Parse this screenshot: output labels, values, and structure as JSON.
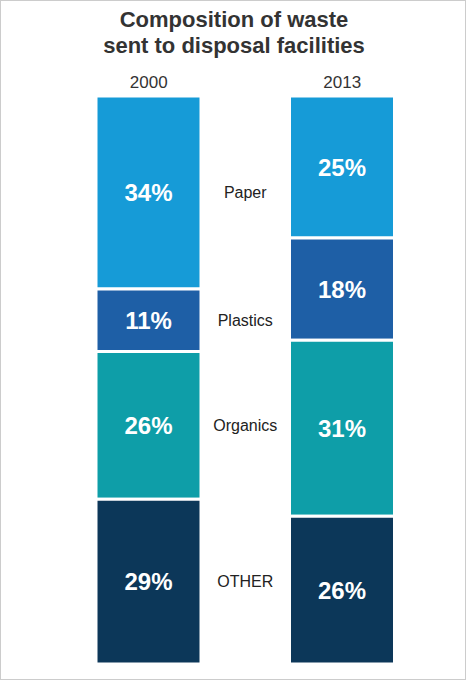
{
  "chart_data": {
    "type": "bar",
    "title": "Composition of waste sent to disposal facilities",
    "categories": [
      "2000",
      "2013"
    ],
    "stacked": true,
    "data_labels": true,
    "tick_labels": "x",
    "ylim": [
      0,
      100
    ],
    "series": [
      {
        "name": "Paper",
        "color": "#169bd7",
        "values": [
          34,
          25
        ],
        "value_labels": [
          "34%",
          "25%"
        ]
      },
      {
        "name": "Plastics",
        "color": "#1e5fa6",
        "values": [
          11,
          18
        ],
        "value_labels": [
          "11%",
          "18%"
        ]
      },
      {
        "name": "Organics",
        "color": "#0e9ea8",
        "values": [
          26,
          31
        ],
        "value_labels": [
          "26%",
          "31%"
        ]
      },
      {
        "name": "OTHER",
        "color": "#0c3759",
        "values": [
          29,
          26
        ],
        "value_labels": [
          "29%",
          "26%"
        ]
      }
    ]
  }
}
